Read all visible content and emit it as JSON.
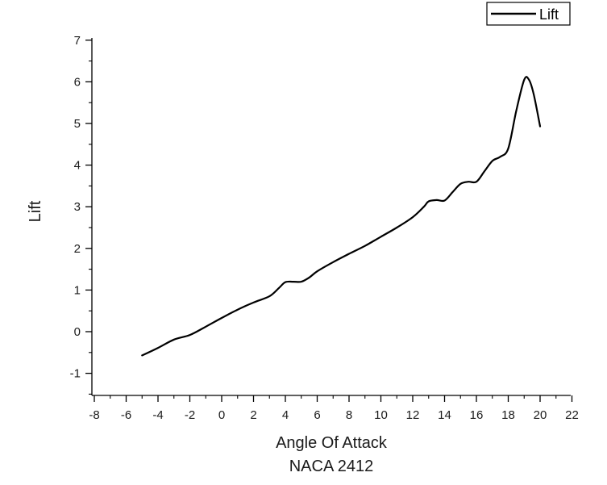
{
  "chart_data": {
    "type": "line",
    "title": "",
    "xlabel": "Angle Of Attack",
    "xlabel_line2": "NACA 2412",
    "ylabel": "Lift",
    "xlim": [
      -8,
      22
    ],
    "ylim": [
      -1.5,
      7
    ],
    "x_ticks": [
      -8,
      -6,
      -4,
      -2,
      0,
      2,
      4,
      6,
      8,
      10,
      12,
      14,
      16,
      18,
      20,
      22
    ],
    "y_ticks": [
      -1,
      0,
      1,
      2,
      3,
      4,
      5,
      6,
      7
    ],
    "x_tick_labels": [
      "-8",
      "-6",
      "-4",
      "-2",
      "0",
      "2",
      "4",
      "6",
      "8",
      "10",
      "12",
      "14",
      "16",
      "18",
      "20",
      "22"
    ],
    "y_tick_labels": [
      "-1",
      "0",
      "1",
      "2",
      "3",
      "4",
      "5",
      "6",
      "7"
    ],
    "grid": false,
    "legend_position": "top-right",
    "line_color": "#000000",
    "series": [
      {
        "name": "Lift",
        "x": [
          -5,
          -4,
          -3,
          -2,
          -1,
          0,
          1,
          2,
          3,
          3.6,
          4,
          4.5,
          5,
          5.5,
          6,
          7,
          8,
          9,
          10,
          11,
          12,
          12.7,
          13,
          13.5,
          14,
          14.5,
          15,
          15.5,
          16,
          16.5,
          17,
          17.5,
          18,
          18.5,
          19,
          19.3,
          19.6,
          20
        ],
        "y": [
          -0.57,
          -0.39,
          -0.19,
          -0.08,
          0.12,
          0.33,
          0.53,
          0.7,
          0.85,
          1.05,
          1.19,
          1.2,
          1.2,
          1.3,
          1.45,
          1.67,
          1.87,
          2.06,
          2.28,
          2.5,
          2.75,
          3.0,
          3.13,
          3.16,
          3.15,
          3.35,
          3.55,
          3.6,
          3.6,
          3.85,
          4.1,
          4.2,
          4.4,
          5.3,
          6.05,
          6.05,
          5.7,
          4.93
        ]
      }
    ]
  }
}
